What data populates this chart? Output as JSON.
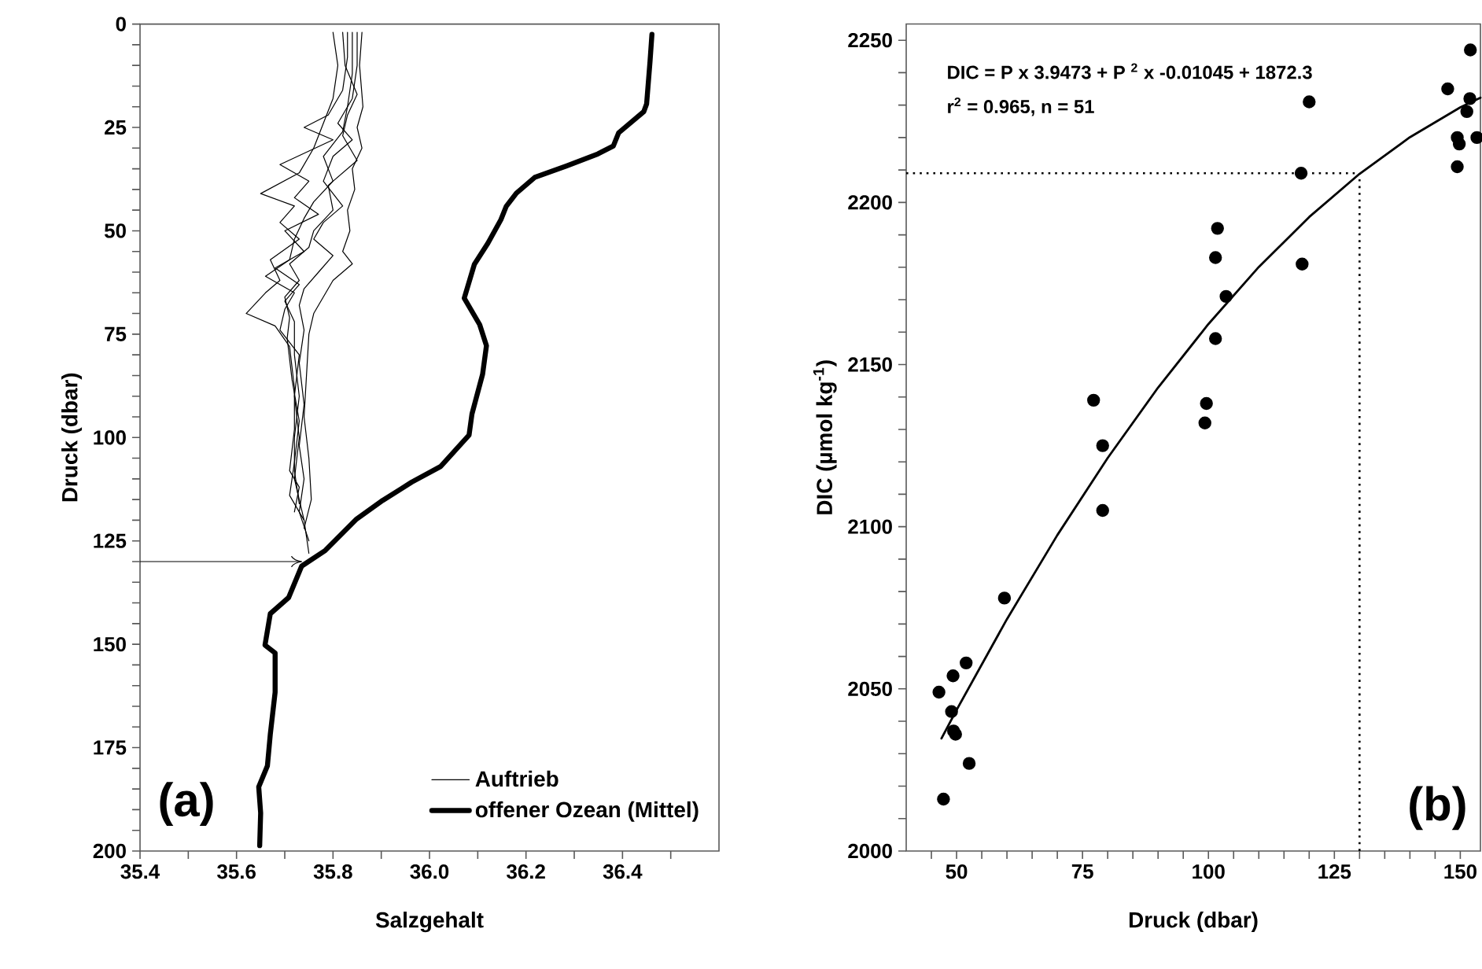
{
  "chart_data": [
    {
      "type": "line",
      "xlabel": "Salzgehalt",
      "ylabel": "Druck (dbar)",
      "xlim": [
        35.4,
        36.6
      ],
      "ylim": [
        200,
        0
      ],
      "legend": "bottom right",
      "xticks": [
        35.4,
        {
          "value": 35.5,
          "label": null
        },
        35.6,
        {
          "value": 35.7,
          "label": null
        },
        35.8,
        {
          "value": 35.9,
          "label": null
        },
        {
          "value": 36,
          "label": "36.0"
        },
        {
          "value": 36.1,
          "label": null
        },
        36.2,
        {
          "value": 36.3,
          "label": null
        },
        36.4,
        {
          "value": 36.5,
          "label": null
        }
      ],
      "yticks": [
        0,
        {
          "value": 5,
          "label": null
        },
        {
          "value": 10,
          "label": null
        },
        {
          "value": 15,
          "label": null
        },
        {
          "value": 20,
          "label": null
        },
        25,
        {
          "value": 30,
          "label": null
        },
        {
          "value": 35,
          "label": null
        },
        {
          "value": 40,
          "label": null
        },
        {
          "value": 45,
          "label": null
        },
        50,
        {
          "value": 55,
          "label": null
        },
        {
          "value": 60,
          "label": null
        },
        {
          "value": 65,
          "label": null
        },
        {
          "value": 70,
          "label": null
        },
        75,
        {
          "value": 80,
          "label": null
        },
        {
          "value": 85,
          "label": null
        },
        {
          "value": 90,
          "label": null
        },
        {
          "value": 95,
          "label": null
        },
        100,
        {
          "value": 105,
          "label": null
        },
        {
          "value": 110,
          "label": null
        },
        {
          "value": 115,
          "label": null
        },
        {
          "value": 120,
          "label": null
        },
        125,
        {
          "value": 130,
          "label": null
        },
        {
          "value": 135,
          "label": null
        },
        {
          "value": 140,
          "label": null
        },
        {
          "value": 145,
          "label": null
        },
        150,
        {
          "value": 155,
          "label": null
        },
        {
          "value": 160,
          "label": null
        },
        {
          "value": 165,
          "label": null
        },
        {
          "value": 170,
          "label": null
        },
        175,
        {
          "value": 180,
          "label": null
        },
        {
          "value": 185,
          "label": null
        },
        {
          "value": 190,
          "label": null
        },
        {
          "value": 195,
          "label": null
        },
        200
      ],
      "series": [
        {
          "name": "Auftrieb",
          "color": "#000000",
          "x": [
            35.86,
            35.855,
            35.862,
            35.85,
            35.86,
            35.84,
            35.845,
            35.83,
            35.835,
            35.82,
            35.84,
            35.8,
            35.78,
            35.76,
            35.75,
            35.745,
            35.74,
            35.75,
            35.755,
            35.74
          ],
          "values": [
            2,
            10,
            20,
            25,
            30,
            35,
            40,
            45,
            50,
            55,
            58,
            62,
            66,
            70,
            75,
            85,
            95,
            105,
            115,
            122
          ]
        },
        {
          "color": "#000000",
          "x": [
            35.85,
            35.85,
            35.84,
            35.81,
            35.84,
            35.8,
            35.78,
            35.82,
            35.78,
            35.76,
            35.8,
            35.77,
            35.74,
            35.73,
            35.74,
            35.73,
            35.74,
            35.73,
            35.74,
            35.73,
            35.75
          ],
          "values": [
            2,
            10,
            18,
            24,
            28,
            32,
            38,
            44,
            48,
            52,
            56,
            60,
            64,
            68,
            74,
            82,
            92,
            102,
            110,
            118,
            125
          ]
        },
        {
          "color": "#000000",
          "x": [
            35.83,
            35.83,
            35.82,
            35.79,
            35.74,
            35.8,
            35.69,
            35.75,
            35.72,
            35.77,
            35.7,
            35.74,
            35.68,
            35.73,
            35.7,
            35.72,
            35.72,
            35.73,
            35.72,
            35.72,
            35.73
          ],
          "values": [
            2,
            8,
            16,
            22,
            25,
            28,
            34,
            38,
            42,
            46,
            50,
            55,
            59,
            63,
            67,
            72,
            80,
            90,
            100,
            108,
            116
          ]
        },
        {
          "color": "#000000",
          "x": [
            35.8,
            35.81,
            35.8,
            35.78,
            35.76,
            35.73,
            35.65,
            35.72,
            35.69,
            35.73,
            35.67,
            35.69,
            35.66,
            35.62,
            35.68,
            35.71,
            35.72,
            35.72,
            35.71,
            35.73,
            35.72
          ],
          "values": [
            2,
            10,
            18,
            24,
            30,
            36,
            41,
            44,
            48,
            52,
            57,
            62,
            65,
            70,
            73,
            78,
            88,
            98,
            108,
            112,
            118
          ]
        },
        {
          "color": "#000000",
          "x": [
            35.84,
            35.84,
            35.83,
            35.82,
            35.78,
            35.8,
            35.76,
            35.74,
            35.72,
            35.71,
            35.66,
            35.72,
            35.7,
            35.69,
            35.73,
            35.72,
            35.73,
            35.72,
            35.74,
            35.75
          ],
          "values": [
            2,
            12,
            20,
            26,
            32,
            38,
            43,
            47,
            52,
            57,
            61,
            65,
            69,
            74,
            80,
            90,
            100,
            110,
            120,
            128
          ]
        },
        {
          "color": "#000000",
          "x": [
            35.82,
            35.825,
            35.85,
            35.83,
            35.82,
            35.85,
            35.79,
            35.8,
            35.76,
            35.75,
            35.71,
            35.73,
            35.7,
            35.71,
            35.705,
            35.715,
            35.73,
            35.72,
            35.71,
            35.74
          ],
          "values": [
            2,
            10,
            17,
            22,
            27,
            33,
            39,
            45,
            50,
            54,
            58,
            62,
            66,
            71,
            76,
            86,
            96,
            106,
            114,
            120
          ]
        },
        {
          "name": "offener Ozean (Mittel)",
          "color": "#000000",
          "x": [
            36.461,
            36.457,
            36.45,
            36.444,
            36.392,
            36.381,
            36.349,
            36.284,
            36.218,
            36.18,
            36.159,
            36.148,
            36.121,
            36.093,
            36.072,
            36.104,
            36.118,
            36.11,
            36.088,
            36.082,
            36.023,
            35.963,
            35.903,
            35.849,
            35.784,
            35.735,
            35.708,
            35.67,
            35.659,
            35.68,
            35.68,
            35.67,
            35.664,
            35.646,
            35.65,
            35.648
          ],
          "values": [
            2.5,
            9.1,
            19.3,
            21.2,
            26.3,
            29.5,
            31.4,
            34.3,
            37.1,
            40.9,
            44.1,
            47.3,
            53.0,
            58.1,
            66.3,
            72.7,
            77.8,
            84.7,
            94.3,
            99.4,
            107.0,
            110.8,
            115.2,
            119.7,
            127.3,
            131.1,
            138.7,
            142.6,
            150.2,
            152.1,
            161.6,
            171.8,
            179.4,
            184.5,
            190.8,
            198.7
          ]
        }
      ],
      "ref_lines": [
        {
          "axis": "y",
          "value": 130
        }
      ],
      "annotations": [
        "(a)"
      ]
    },
    {
      "type": "scatter",
      "xlabel": "Druck (dbar)",
      "ylabel": "DIC (µmol kg$^{-1}$)",
      "xlim": [
        40,
        154
      ],
      "ylim": [
        2000,
        2255
      ],
      "xticks": [
        {
          "value": 45,
          "label": null
        },
        50,
        {
          "value": 55,
          "label": null
        },
        {
          "value": 60,
          "label": null
        },
        {
          "value": 65,
          "label": null
        },
        {
          "value": 70,
          "label": null
        },
        75,
        {
          "value": 80,
          "label": null
        },
        {
          "value": 85,
          "label": null
        },
        {
          "value": 90,
          "label": null
        },
        {
          "value": 95,
          "label": null
        },
        100,
        {
          "value": 105,
          "label": null
        },
        {
          "value": 110,
          "label": null
        },
        {
          "value": 115,
          "label": null
        },
        {
          "value": 120,
          "label": null
        },
        125,
        {
          "value": 130,
          "label": null
        },
        {
          "value": 135,
          "label": null
        },
        {
          "value": 140,
          "label": null
        },
        {
          "value": 145,
          "label": null
        },
        150
      ],
      "yticks": [
        2000,
        {
          "value": 2010,
          "label": null
        },
        {
          "value": 2020,
          "label": null
        },
        {
          "value": 2030,
          "label": null
        },
        {
          "value": 2040,
          "label": null
        },
        2050,
        {
          "value": 2060,
          "label": null
        },
        {
          "value": 2070,
          "label": null
        },
        {
          "value": 2080,
          "label": null
        },
        {
          "value": 2090,
          "label": null
        },
        2100,
        {
          "value": 2110,
          "label": null
        },
        {
          "value": 2120,
          "label": null
        },
        {
          "value": 2130,
          "label": null
        },
        {
          "value": 2140,
          "label": null
        },
        2150,
        {
          "value": 2160,
          "label": null
        },
        {
          "value": 2170,
          "label": null
        },
        {
          "value": 2180,
          "label": null
        },
        {
          "value": 2190,
          "label": null
        },
        2200,
        {
          "value": 2210,
          "label": null
        },
        {
          "value": 2220,
          "label": null
        },
        {
          "value": 2230,
          "label": null
        },
        {
          "value": 2240,
          "label": null
        },
        2250
      ],
      "series": [
        {
          "type": "scatter",
          "color": "#000000",
          "marker": "circle",
          "x": [
            152.0,
            147.5,
            151.9,
            151.3,
            153.3,
            149.4,
            149.8,
            149.4,
            120.0,
            118.4,
            118.6,
            101.8,
            101.4,
            103.5,
            101.4,
            99.6,
            99.3,
            77.2,
            79.0,
            79.0,
            59.5,
            51.9,
            49.3,
            46.5,
            49.0,
            49.4,
            49.8,
            52.5,
            47.4
          ],
          "values": [
            2247,
            2235,
            2232,
            2228,
            2220,
            2220,
            2218,
            2211,
            2231,
            2209,
            2181,
            2192,
            2183,
            2171,
            2158,
            2138,
            2132,
            2139,
            2125,
            2105,
            2078,
            2058,
            2054,
            2049,
            2043,
            2037,
            2036,
            2027,
            2016
          ]
        },
        {
          "type": "line",
          "color": "#000000",
          "x": [
            47,
            50,
            60,
            70,
            80,
            90,
            100,
            110,
            120,
            130,
            140,
            150,
            154
          ],
          "values": [
            2034.7,
            2043.5,
            2071.5,
            2097.4,
            2121.2,
            2142.9,
            2162.5,
            2180.1,
            2195.5,
            2208.8,
            2220.1,
            2229.3,
            2232.3
          ]
        }
      ],
      "ref_lines": [
        {
          "axis": "y",
          "value": 2209,
          "line_style": "dotted"
        },
        {
          "axis": "x",
          "value": 130,
          "line_style": "dotted"
        }
      ],
      "annotations": [
        "DIC = P x 3.9473 + P $^{2}$ x -0.01045 + 1872.3",
        "r$^{2}$ = 0.965, n = 51",
        "(b)"
      ]
    }
  ]
}
